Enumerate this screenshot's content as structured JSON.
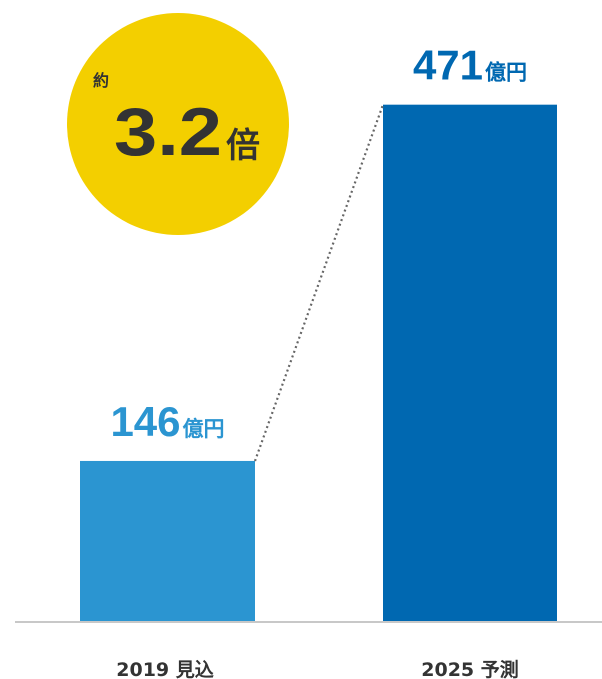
{
  "chart_data": {
    "type": "bar",
    "categories": [
      "2019 見込",
      "2025 予測"
    ],
    "values": [
      146,
      471
    ],
    "value_labels": [
      {
        "number": "146",
        "unit": "億円"
      },
      {
        "number": "471",
        "unit": "億円"
      }
    ],
    "ylim": [
      0,
      530
    ],
    "grid": false,
    "legend": "none",
    "connector": "dotted line from top of first bar to top of second bar",
    "annotation": {
      "prefix": "約",
      "number": "3.2",
      "suffix": "倍"
    }
  },
  "colors": {
    "bar_2019": "#2b95d1",
    "bar_2025": "#0068b1",
    "label_2019": "#2b95d1",
    "label_2025": "#0068b1",
    "badge": "#f3cf00",
    "text_dark": "#333333",
    "baseline": "#c8c8c8",
    "connector": "#666666"
  }
}
